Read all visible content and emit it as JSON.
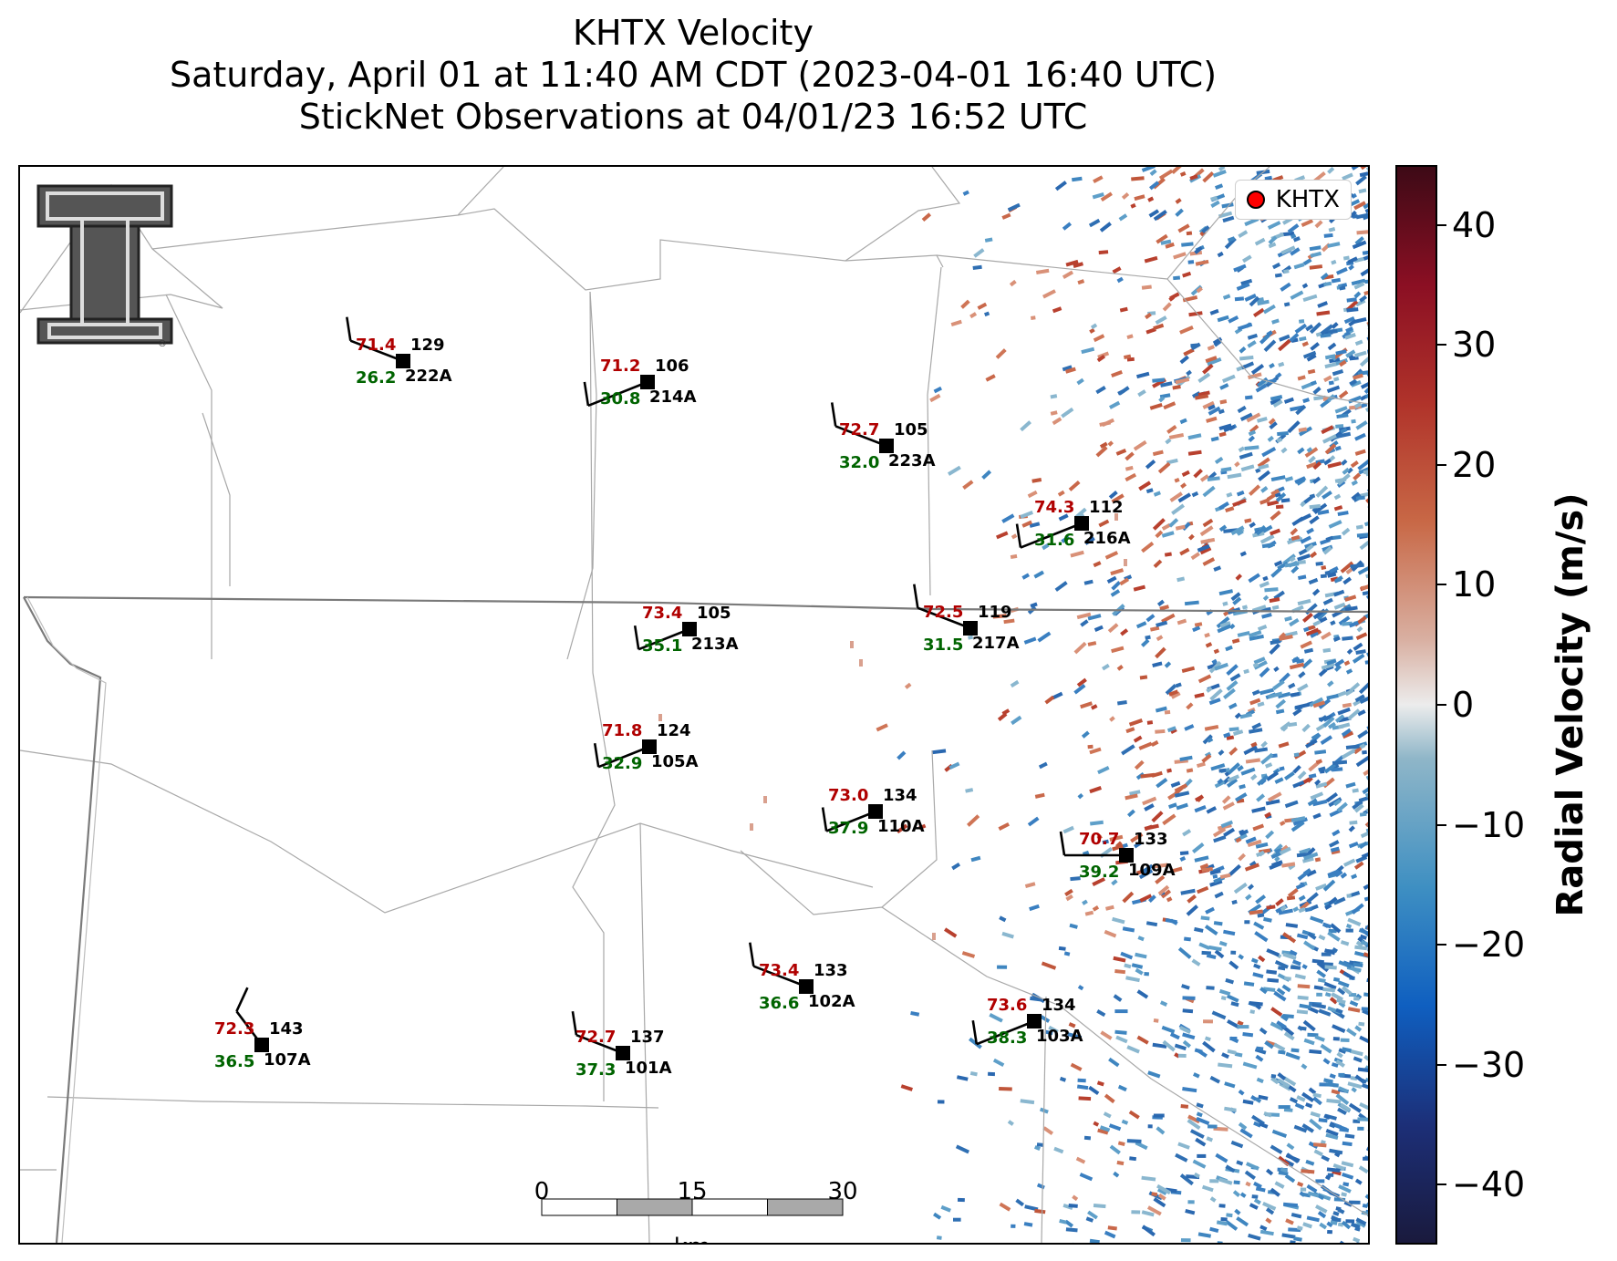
{
  "title": {
    "line1": "KHTX Velocity",
    "line2": "Saturday, April 01 at 11:40 AM CDT (2023-04-01 16:40 UTC)",
    "line3": "StickNet Observations at 04/01/23 16:52 UTC"
  },
  "legend": {
    "label": "KHTX",
    "marker_color": "#ff0000"
  },
  "colorbar": {
    "label": "Radial Velocity (m/s)",
    "ticks": [
      "40",
      "30",
      "20",
      "10",
      "0",
      "−10",
      "−20",
      "−30",
      "−40"
    ],
    "tick_values": [
      40,
      30,
      20,
      10,
      0,
      -10,
      -20,
      -30,
      -40
    ],
    "range": [
      -45,
      45
    ]
  },
  "scalebar": {
    "ticks": [
      "0",
      "15",
      "30"
    ],
    "unit": "km"
  },
  "logo": {
    "icon": "texas-tech-double-t-logo-icon"
  },
  "colors": {
    "temperature": "#b00000",
    "dewpoint": "#006400",
    "station_text": "#000000"
  },
  "stations": [
    {
      "id": "222A",
      "temp": "71.4",
      "dew": "26.2",
      "pressure": "129"
    },
    {
      "id": "214A",
      "temp": "71.2",
      "dew": "30.8",
      "pressure": "106"
    },
    {
      "id": "223A",
      "temp": "72.7",
      "dew": "32.0",
      "pressure": "105"
    },
    {
      "id": "216A",
      "temp": "74.3",
      "dew": "31.6",
      "pressure": "112"
    },
    {
      "id": "213A",
      "temp": "73.4",
      "dew": "35.1",
      "pressure": "105"
    },
    {
      "id": "217A",
      "temp": "72.5",
      "dew": "31.5",
      "pressure": "119"
    },
    {
      "id": "105A",
      "temp": "71.8",
      "dew": "32.9",
      "pressure": "124"
    },
    {
      "id": "110A",
      "temp": "73.0",
      "dew": "37.9",
      "pressure": "134"
    },
    {
      "id": "109A",
      "temp": "70.7",
      "dew": "39.2",
      "pressure": "133"
    },
    {
      "id": "102A",
      "temp": "73.4",
      "dew": "36.6",
      "pressure": "133"
    },
    {
      "id": "103A",
      "temp": "73.6",
      "dew": "38.3",
      "pressure": "134"
    },
    {
      "id": "107A",
      "temp": "72.3",
      "dew": "36.5",
      "pressure": "143"
    },
    {
      "id": "101A",
      "temp": "72.7",
      "dew": "37.3",
      "pressure": "137"
    }
  ]
}
